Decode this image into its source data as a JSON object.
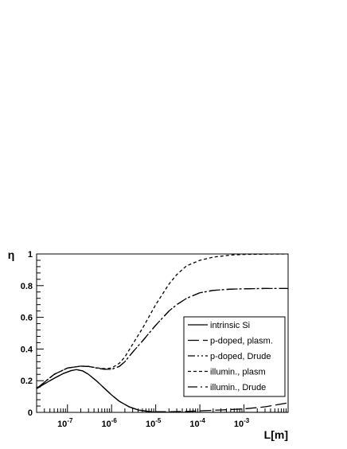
{
  "chart_data": {
    "type": "line",
    "title": "",
    "xlabel": "L[m]",
    "ylabel": "η",
    "xscale": "log",
    "xlim": [
      2e-08,
      0.01
    ],
    "ylim": [
      0,
      1
    ],
    "grid": false,
    "legend_position": "bottom-right",
    "x_ticks": [
      {
        "value": 1e-07,
        "label": "10",
        "exp": "-7"
      },
      {
        "value": 1e-06,
        "label": "10",
        "exp": "-6"
      },
      {
        "value": 1e-05,
        "label": "10",
        "exp": "-5"
      },
      {
        "value": 0.0001,
        "label": "10",
        "exp": "-4"
      },
      {
        "value": 0.001,
        "label": "10",
        "exp": "-3"
      }
    ],
    "y_ticks": [
      {
        "value": 0,
        "label": "0"
      },
      {
        "value": 0.2,
        "label": "0.2"
      },
      {
        "value": 0.4,
        "label": "0.4"
      },
      {
        "value": 0.6,
        "label": "0.6"
      },
      {
        "value": 0.8,
        "label": "0.8"
      },
      {
        "value": 1,
        "label": "1"
      }
    ],
    "series": [
      {
        "name": "intrinsic Si",
        "dash": "solid",
        "x": [
          2e-08,
          3e-08,
          5e-08,
          8e-08,
          1.2e-07,
          1.6e-07,
          2.2e-07,
          3e-07,
          4.5e-07,
          7e-07,
          1e-06,
          1.5e-06,
          2.5e-06,
          4e-06,
          7e-06,
          1e-05,
          2e-05,
          5e-05,
          0.0001,
          0.001,
          0.01
        ],
        "y": [
          0.15,
          0.18,
          0.215,
          0.245,
          0.263,
          0.27,
          0.262,
          0.24,
          0.2,
          0.15,
          0.11,
          0.07,
          0.035,
          0.015,
          0.005,
          0.002,
          0.0005,
          0.0002,
          0.0001,
          0,
          0
        ]
      },
      {
        "name": "p-doped,  plasm.",
        "dash": "longdash",
        "x": [
          2e-08,
          3e-08,
          5e-08,
          8e-08,
          1.2e-07,
          1.6e-07,
          2.2e-07,
          3e-07,
          4.5e-07,
          7e-07,
          1e-06,
          1.5e-06,
          2.5e-06,
          4e-06,
          7e-06,
          1e-05,
          2e-05,
          5e-05,
          0.0001,
          0.0003,
          0.001,
          0.003,
          0.01
        ],
        "y": [
          0.15,
          0.18,
          0.215,
          0.245,
          0.263,
          0.27,
          0.262,
          0.24,
          0.2,
          0.15,
          0.11,
          0.07,
          0.035,
          0.015,
          0.006,
          0.004,
          0.004,
          0.006,
          0.01,
          0.015,
          0.022,
          0.035,
          0.06
        ]
      },
      {
        "name": "p-doped,  Drude",
        "dash": "dashdotdot",
        "x": [
          2e-08,
          3e-08,
          5e-08,
          1e-07,
          2e-07,
          3e-07,
          5e-07,
          7e-07,
          1e-06,
          1.5e-06,
          2e-06,
          3e-06,
          5e-06,
          1e-05,
          2e-05,
          3e-05,
          5e-05,
          0.0001,
          0.0002,
          0.0005,
          0.001,
          0.003,
          0.01
        ],
        "y": [
          0.15,
          0.19,
          0.24,
          0.28,
          0.292,
          0.29,
          0.278,
          0.272,
          0.272,
          0.29,
          0.32,
          0.38,
          0.45,
          0.55,
          0.64,
          0.68,
          0.72,
          0.755,
          0.77,
          0.778,
          0.78,
          0.782,
          0.782
        ]
      },
      {
        "name": "illumin., plasm",
        "dash": "shortdash",
        "x": [
          2e-08,
          3e-08,
          5e-08,
          1e-07,
          2e-07,
          3e-07,
          5e-07,
          7e-07,
          1e-06,
          1.5e-06,
          2e-06,
          3e-06,
          5e-06,
          1e-05,
          2e-05,
          3e-05,
          5e-05,
          0.0001,
          0.0002,
          0.0005,
          0.001,
          0.003,
          0.01
        ],
        "y": [
          0.15,
          0.19,
          0.24,
          0.28,
          0.292,
          0.29,
          0.28,
          0.276,
          0.28,
          0.31,
          0.35,
          0.43,
          0.53,
          0.68,
          0.81,
          0.87,
          0.925,
          0.96,
          0.98,
          0.993,
          0.997,
          0.999,
          1.0
        ]
      },
      {
        "name": "illumin.,  Drude",
        "dash": "dashdot",
        "x": [
          2e-08,
          3e-08,
          5e-08,
          1e-07,
          2e-07,
          3e-07,
          5e-07,
          7e-07,
          1e-06,
          1.5e-06,
          2e-06,
          3e-06,
          5e-06,
          1e-05,
          2e-05,
          3e-05,
          5e-05,
          0.0001,
          0.0002,
          0.0005,
          0.001,
          0.003,
          0.01
        ],
        "y": [
          0.15,
          0.19,
          0.24,
          0.28,
          0.292,
          0.29,
          0.278,
          0.272,
          0.272,
          0.29,
          0.32,
          0.38,
          0.45,
          0.55,
          0.64,
          0.68,
          0.72,
          0.755,
          0.77,
          0.778,
          0.78,
          0.782,
          0.782
        ]
      }
    ]
  }
}
